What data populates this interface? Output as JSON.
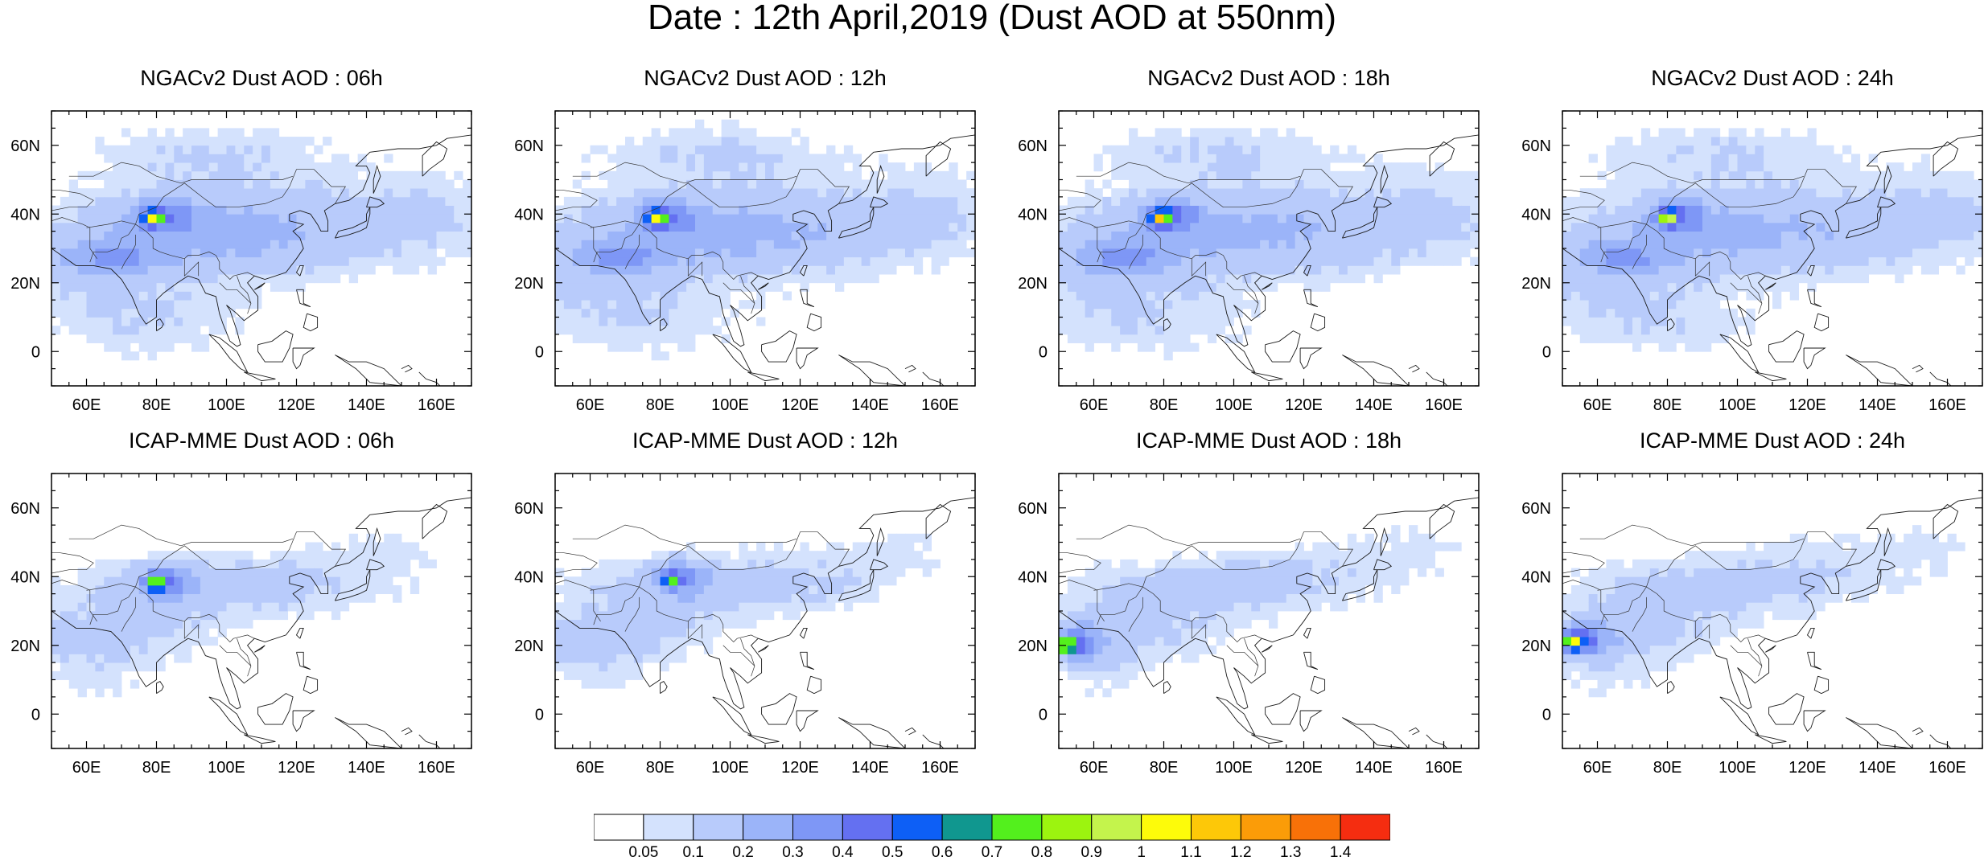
{
  "title": "Date : 12th April,2019 (Dust AOD at 550nm)",
  "map_extent": {
    "lon": [
      50,
      170
    ],
    "lat": [
      -10,
      70
    ]
  },
  "lon_ticks": [
    60,
    80,
    100,
    120,
    140,
    160
  ],
  "lat_ticks": [
    0,
    20,
    40,
    60
  ],
  "lon_tick_labels": [
    "60E",
    "80E",
    "100E",
    "120E",
    "140E",
    "160E"
  ],
  "lat_tick_labels": [
    "0",
    "20N",
    "40N",
    "60N"
  ],
  "panels": [
    {
      "title": "NGACv2 Dust AOD : 06h",
      "model": "NGACv2",
      "hour": 6,
      "hotspot": {
        "lon": 79,
        "lat": 39,
        "aod": 0.8
      }
    },
    {
      "title": "NGACv2 Dust AOD : 12h",
      "model": "NGACv2",
      "hour": 12,
      "hotspot": {
        "lon": 79,
        "lat": 39,
        "aod": 0.8
      }
    },
    {
      "title": "NGACv2 Dust AOD : 18h",
      "model": "NGACv2",
      "hour": 18,
      "hotspot": {
        "lon": 79,
        "lat": 39,
        "aod": 0.9
      }
    },
    {
      "title": "NGACv2 Dust AOD : 24h",
      "model": "NGACv2",
      "hour": 24,
      "hotspot": {
        "lon": 80,
        "lat": 39,
        "aod": 0.8
      }
    },
    {
      "title": "ICAP-MME Dust AOD : 06h",
      "model": "ICAP-MME",
      "hour": 6,
      "hotspot": {
        "lon": 80,
        "lat": 38,
        "aod": 0.7
      }
    },
    {
      "title": "ICAP-MME Dust AOD : 12h",
      "model": "ICAP-MME",
      "hour": 12,
      "hotspot": {
        "lon": 83,
        "lat": 39,
        "aod": 0.5
      }
    },
    {
      "title": "ICAP-MME Dust AOD : 18h",
      "model": "ICAP-MME",
      "hour": 18,
      "hotspot": {
        "lon": 52,
        "lat": 20,
        "aod": 0.8
      }
    },
    {
      "title": "ICAP-MME Dust AOD : 24h",
      "model": "ICAP-MME",
      "hour": 24,
      "hotspot": {
        "lon": 53,
        "lat": 21,
        "aod": 0.8
      }
    }
  ],
  "colorbar": {
    "labels": [
      "0.05",
      "0.1",
      "0.2",
      "0.3",
      "0.4",
      "0.5",
      "0.6",
      "0.7",
      "0.8",
      "0.9",
      "1",
      "1.1",
      "1.2",
      "1.3",
      "1.4"
    ],
    "colors": [
      "#ffffff",
      "#d4e2fd",
      "#b8cbfb",
      "#9bb4f9",
      "#7e97f6",
      "#6470f1",
      "#0d5ff6",
      "#10978f",
      "#53f01d",
      "#9cf40f",
      "#c4f44c",
      "#fdfb0a",
      "#fdc808",
      "#fb9c08",
      "#f87108",
      "#f52d10"
    ]
  },
  "chart_data": {
    "type": "heatmap",
    "title": "Date : 12th April,2019 (Dust AOD at 550nm)",
    "variable": "Dust AOD at 550nm",
    "date": "12th April,2019",
    "lon_range": [
      50,
      170
    ],
    "lat_range": [
      -10,
      70
    ],
    "levels": [
      0.05,
      0.1,
      0.2,
      0.3,
      0.4,
      0.5,
      0.6,
      0.7,
      0.8,
      0.9,
      1,
      1.1,
      1.2,
      1.3,
      1.4
    ],
    "panels": [
      "NGACv2 Dust AOD : 06h",
      "NGACv2 Dust AOD : 12h",
      "NGACv2 Dust AOD : 18h",
      "NGACv2 Dust AOD : 24h",
      "ICAP-MME Dust AOD : 06h",
      "ICAP-MME Dust AOD : 12h",
      "ICAP-MME Dust AOD : 18h",
      "ICAP-MME Dust AOD : 24h"
    ]
  }
}
